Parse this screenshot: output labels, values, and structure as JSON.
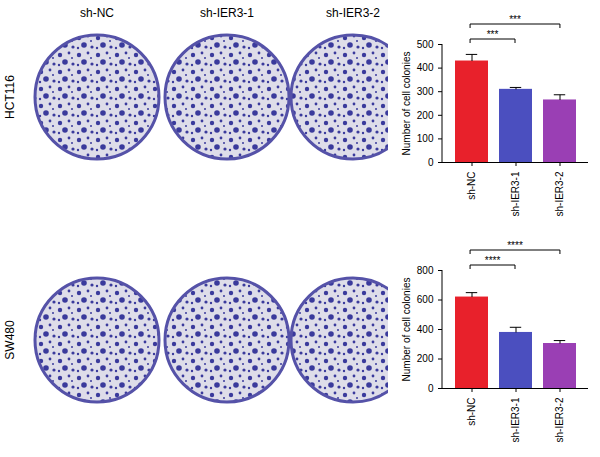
{
  "figure": {
    "columns": [
      "sh-NC",
      "sh-IER3-1",
      "sh-IER3-2"
    ],
    "rows": [
      "HCT116",
      "SW480"
    ]
  },
  "chart_data": [
    {
      "type": "bar",
      "categories": [
        "sh-NC",
        "sh-IER3-1",
        "sh-IER3-2"
      ],
      "values": [
        430,
        310,
        265
      ],
      "errors": [
        28,
        8,
        22
      ],
      "colors": [
        "#e8212b",
        "#4b4fbf",
        "#9a3fb4"
      ],
      "ylabel": "Number of cell colonies",
      "ylim": [
        0,
        500
      ],
      "yticks": [
        0,
        100,
        200,
        300,
        400,
        500
      ],
      "significance": [
        {
          "groups": [
            "sh-NC",
            "sh-IER3-1"
          ],
          "label": "***"
        },
        {
          "groups": [
            "sh-NC",
            "sh-IER3-2"
          ],
          "label": "***"
        }
      ]
    },
    {
      "type": "bar",
      "categories": [
        "sh-NC",
        "sh-IER3-1",
        "sh-IER3-2"
      ],
      "values": [
        620,
        380,
        305
      ],
      "errors": [
        30,
        35,
        20
      ],
      "colors": [
        "#e8212b",
        "#4b4fbf",
        "#9a3fb4"
      ],
      "ylabel": "Number of cell colonies",
      "ylim": [
        0,
        800
      ],
      "yticks": [
        0,
        200,
        400,
        600,
        800
      ],
      "significance": [
        {
          "groups": [
            "sh-NC",
            "sh-IER3-1"
          ],
          "label": "****"
        },
        {
          "groups": [
            "sh-NC",
            "sh-IER3-2"
          ],
          "label": "****"
        }
      ]
    }
  ]
}
